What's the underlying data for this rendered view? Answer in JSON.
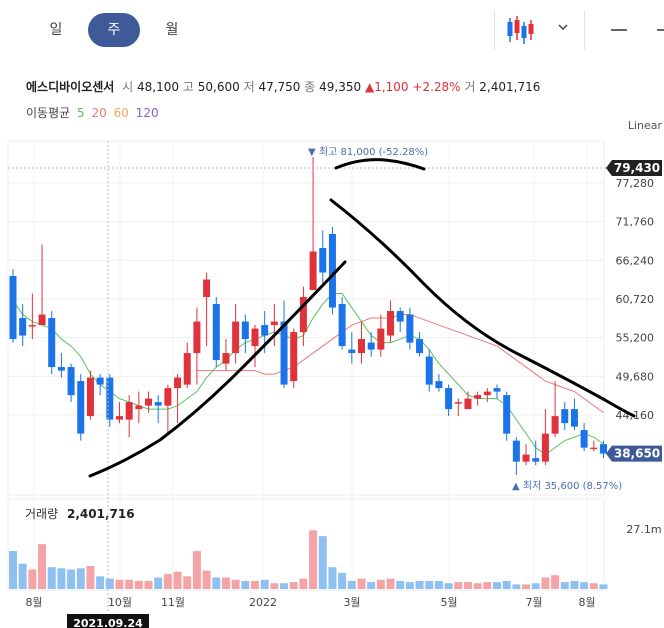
{
  "tabs": {
    "day": "일",
    "week": "주",
    "month": "월"
  },
  "header": {
    "name": "에스디바이오센서",
    "open_label": "시",
    "open": "48,100",
    "high_label": "고",
    "high": "50,600",
    "low_label": "저",
    "low": "47,750",
    "close_label": "종",
    "close": "49,350",
    "change_arrow": "▲",
    "change": "1,100",
    "change_pct": "+2.28%",
    "volume_label": "거",
    "volume": "2,401,716"
  },
  "ma": {
    "label": "이동평균",
    "p5": "5",
    "p20": "20",
    "p60": "60",
    "p120": "120"
  },
  "scale_label": "Linear",
  "colors": {
    "up": "#e0323b",
    "down": "#1a73e8",
    "ma5": "#5cbf5c",
    "ma20": "#e87a7a",
    "ma60": "#f2a65a",
    "ma120": "#8b5fd6",
    "tab_active": "#3f5a99",
    "current_badge": "#3f5a99"
  },
  "chart_data": {
    "type": "candlestick",
    "yticks": [
      "77,280",
      "71,760",
      "66,240",
      "60,720",
      "55,200",
      "49,680",
      "44,160"
    ],
    "ylim": [
      32000,
      83000
    ],
    "xticks": [
      "8월",
      "10월",
      "11월",
      "2022",
      "3월",
      "5월",
      "7월",
      "8월"
    ],
    "high_marker": {
      "text": "최고 81,000 (-52.28%)",
      "value": 81000
    },
    "low_marker": {
      "text": "최저 35,600 (8.57%)",
      "value": 35600
    },
    "crosshair_price": "79,430",
    "current_price": "38,650",
    "crosshair_date": "2021.09.24",
    "volume_label": "거래량",
    "volume_value": "2,401,716",
    "volume_tick": "27.1m",
    "candles": [
      [
        64000,
        55000,
        65000,
        54500
      ],
      [
        58000,
        55500,
        60000,
        54000
      ],
      [
        57000,
        57000,
        61500,
        55000
      ],
      [
        57000,
        58500,
        68500,
        57000
      ],
      [
        58000,
        51000,
        59000,
        50000
      ],
      [
        51000,
        50500,
        53000,
        49500
      ],
      [
        51000,
        47000,
        51500,
        46000
      ],
      [
        49000,
        41500,
        50000,
        40500
      ],
      [
        44000,
        49500,
        50500,
        43500
      ],
      [
        49500,
        48500,
        50000,
        47000
      ],
      [
        49500,
        43500,
        50000,
        42500
      ],
      [
        43500,
        44000,
        46000,
        43000
      ],
      [
        43500,
        46000,
        47000,
        41000
      ],
      [
        45000,
        45500,
        47500,
        43000
      ],
      [
        45500,
        46500,
        47500,
        44500
      ],
      [
        46000,
        45500,
        47000,
        43000
      ],
      [
        45500,
        48000,
        48500,
        41500
      ],
      [
        48000,
        49500,
        50000,
        43000
      ],
      [
        48500,
        53000,
        54500,
        48000
      ],
      [
        53000,
        57500,
        59500,
        48500
      ],
      [
        61000,
        63500,
        64500,
        54000
      ],
      [
        60000,
        52000,
        61000,
        51000
      ],
      [
        51500,
        53000,
        55000,
        50500
      ],
      [
        53000,
        57500,
        60000,
        51500
      ],
      [
        57500,
        55000,
        58500,
        53000
      ],
      [
        54000,
        56500,
        57000,
        51000
      ],
      [
        57000,
        55500,
        59000,
        53000
      ],
      [
        57000,
        57500,
        60000,
        54000
      ],
      [
        57500,
        48500,
        60500,
        48000
      ],
      [
        49000,
        56000,
        56500,
        48000
      ],
      [
        56000,
        61000,
        62500,
        54000
      ],
      [
        62000,
        67500,
        81000,
        62000
      ],
      [
        68000,
        64500,
        70500,
        63000
      ],
      [
        70000,
        59500,
        71000,
        58500
      ],
      [
        60000,
        54000,
        61000,
        53500
      ],
      [
        53500,
        53000,
        56000,
        51500
      ],
      [
        53000,
        55000,
        57500,
        51500
      ],
      [
        54500,
        53500,
        56000,
        52500
      ],
      [
        53500,
        56500,
        58500,
        52500
      ],
      [
        55500,
        59000,
        60500,
        54500
      ],
      [
        59000,
        57500,
        59500,
        56000
      ],
      [
        58500,
        54500,
        59500,
        53500
      ],
      [
        55000,
        53000,
        56000,
        52500
      ],
      [
        52500,
        48500,
        53500,
        47500
      ],
      [
        49000,
        48000,
        50000,
        47500
      ],
      [
        48000,
        45000,
        48500,
        44000
      ],
      [
        46000,
        46000,
        46500,
        44000
      ],
      [
        45000,
        46500,
        47500,
        45000
      ],
      [
        46500,
        47000,
        47500,
        45500
      ],
      [
        47000,
        47500,
        48000,
        46000
      ],
      [
        48000,
        47500,
        48500,
        46500
      ],
      [
        47000,
        41500,
        47500,
        40500
      ],
      [
        40500,
        37500,
        41000,
        35600
      ],
      [
        37500,
        38500,
        40000,
        37000
      ],
      [
        38000,
        37500,
        40500,
        37000
      ],
      [
        37500,
        41500,
        45000,
        37000
      ],
      [
        41500,
        44000,
        49000,
        41000
      ],
      [
        45000,
        43000,
        46000,
        42000
      ],
      [
        45000,
        42500,
        46500,
        42000
      ],
      [
        42000,
        39500,
        43000,
        39000
      ],
      [
        39500,
        39500,
        40500,
        39000
      ],
      [
        40000,
        38650,
        40500,
        38000
      ]
    ],
    "volumes": [
      33,
      22,
      17,
      39,
      19,
      18,
      17,
      18,
      20,
      11,
      9,
      8,
      8,
      7,
      7,
      10,
      13,
      15,
      11,
      33,
      16,
      10,
      10,
      8,
      7,
      7,
      8,
      5,
      5,
      6,
      9,
      51,
      46,
      19,
      14,
      7,
      9,
      6,
      8,
      9,
      7,
      6,
      7,
      7,
      7,
      5,
      6,
      6,
      5,
      6,
      6,
      7,
      4,
      4,
      5,
      10,
      12,
      6,
      7,
      6,
      5,
      4
    ],
    "ma5": [
      60500,
      58500,
      57500,
      57000,
      56500,
      55000,
      54000,
      52500,
      50000,
      48500,
      47500,
      46500,
      46000,
      45500,
      45000,
      45000,
      45000,
      45500,
      46500,
      47500,
      49500,
      51000,
      52000,
      53500,
      54500,
      55000,
      55500,
      56000,
      55500,
      55000,
      55500,
      58000,
      60000,
      61500,
      61500,
      59500,
      57500,
      55500,
      54500,
      54500,
      55000,
      55500,
      55000,
      53500,
      51500,
      50000,
      48500,
      47000,
      46500,
      46500,
      46500,
      45500,
      43500,
      41500,
      39500,
      38500,
      39500,
      40500,
      41000,
      41500,
      41000,
      40000
    ],
    "ma20": [
      null,
      null,
      null,
      null,
      null,
      null,
      null,
      null,
      null,
      null,
      null,
      null,
      null,
      null,
      null,
      null,
      null,
      null,
      null,
      50500,
      50500,
      50500,
      50500,
      50500,
      50500,
      50500,
      50000,
      50000,
      50500,
      51000,
      52000,
      53000,
      54000,
      55000,
      56000,
      57000,
      57500,
      58000,
      58000,
      58000,
      58500,
      58500,
      58000,
      57500,
      57000,
      56500,
      56000,
      55500,
      55000,
      54500,
      54000,
      53000,
      52000,
      51000,
      50000,
      49000,
      48500,
      48000,
      47500,
      46500,
      45500,
      44500
    ]
  }
}
